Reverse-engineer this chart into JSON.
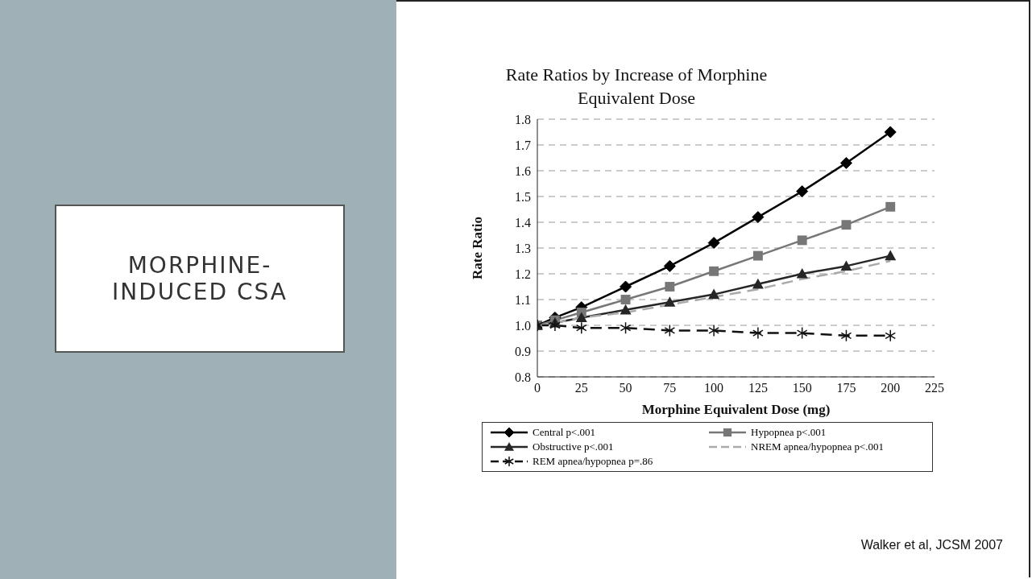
{
  "chart_data": {
    "type": "line",
    "title": "Rate Ratios by Increase of Morphine Equivalent Dose",
    "xlabel": "Morphine Equivalent Dose (mg)",
    "ylabel": "Rate Ratio",
    "annotations": [
      "MORPHINE-INDUCED CSA",
      "Walker et al, JCSM 2007"
    ],
    "x": [
      0,
      10,
      25,
      50,
      75,
      100,
      125,
      150,
      175,
      200
    ],
    "series": [
      {
        "name": "Central p<.001",
        "color": "#000000",
        "marker": "diamond",
        "line_style": "solid",
        "values": [
          1.0,
          1.03,
          1.07,
          1.15,
          1.23,
          1.32,
          1.42,
          1.52,
          1.63,
          1.75
        ]
      },
      {
        "name": "Hypopnea p<.001",
        "color": "#777777",
        "marker": "square",
        "line_style": "solid",
        "values": [
          1.0,
          1.02,
          1.05,
          1.1,
          1.15,
          1.21,
          1.27,
          1.33,
          1.39,
          1.46
        ]
      },
      {
        "name": "Obstructive p<.001",
        "color": "#262626",
        "marker": "triangle",
        "line_style": "solid",
        "values": [
          1.0,
          1.01,
          1.03,
          1.06,
          1.09,
          1.12,
          1.16,
          1.2,
          1.23,
          1.27
        ]
      },
      {
        "name": "NREM apnea/hypopnea p<.001",
        "color": "#aaaaaa",
        "marker": "none",
        "line_style": "dashed",
        "values": [
          1.0,
          1.01,
          1.03,
          1.05,
          1.08,
          1.11,
          1.14,
          1.18,
          1.21,
          1.25
        ]
      },
      {
        "name": "REM apnea/hypopnea p=.86",
        "color": "#111111",
        "marker": "cross",
        "line_style": "dashed",
        "values": [
          1.0,
          1.0,
          0.99,
          0.99,
          0.98,
          0.98,
          0.97,
          0.97,
          0.96,
          0.96
        ]
      }
    ],
    "xlim": [
      0,
      225
    ],
    "xticks": [
      0,
      25,
      50,
      75,
      100,
      125,
      150,
      175,
      200,
      225
    ],
    "ylim": [
      0.8,
      1.8
    ],
    "yticks": [
      0.8,
      0.9,
      {
        "value": 1,
        "label": "1.0"
      },
      1.1,
      1.2,
      1.3,
      1.4,
      1.5,
      1.6,
      1.7,
      1.8
    ],
    "grid": "y",
    "legend": "bottom"
  }
}
